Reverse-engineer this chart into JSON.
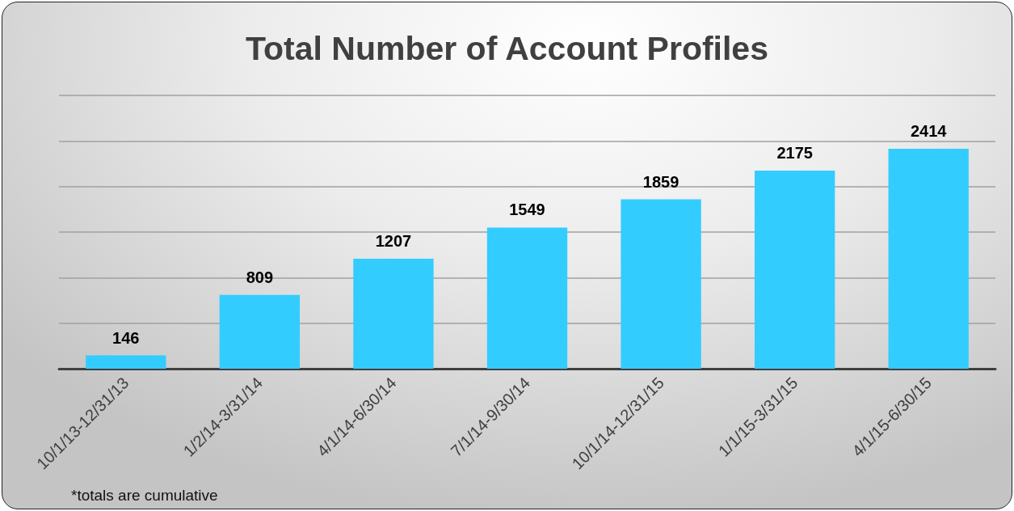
{
  "chart_data": {
    "type": "bar",
    "title": "Total Number of Account Profiles",
    "categories": [
      "10/1/13-12/31/13",
      "1/2/14-3/31/14",
      "4/1/14-6/30/14",
      "7/1/14-9/30/14",
      "10/1/14-12/31/15",
      "1/1/15-3/31/15",
      "4/1/15-6/30/15"
    ],
    "values": [
      146,
      809,
      1207,
      1549,
      1859,
      2175,
      2414
    ],
    "color": "#33ccff",
    "ylim": [
      0,
      3000
    ],
    "yticks": [
      {
        "value": 0,
        "label": null
      },
      {
        "value": 500,
        "label": null
      },
      {
        "value": 1000,
        "label": null
      },
      {
        "value": 1500,
        "label": null
      },
      {
        "value": 2000,
        "label": null
      },
      {
        "value": 2500,
        "label": null
      },
      {
        "value": 3000,
        "label": null
      }
    ],
    "grid": "y",
    "tick_labels": "x",
    "data_labels": true,
    "annotations": [
      "*totals are cumulative"
    ]
  }
}
